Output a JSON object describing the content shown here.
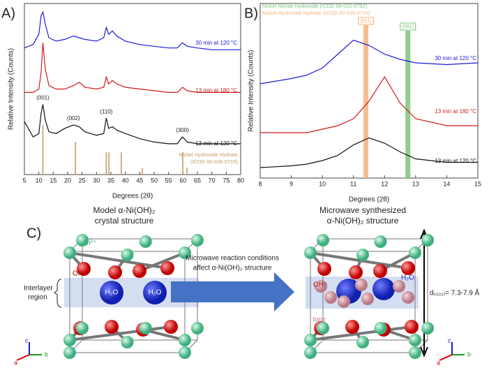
{
  "panel_labels": [
    "A)",
    "B)",
    "C)"
  ],
  "chart_data": [
    {
      "type": "line",
      "ylabel": "Relative Intensity (Counts)",
      "xlabel": "Degrees (2θ)",
      "xlim": [
        5,
        80
      ],
      "xticks": [
        5,
        10,
        15,
        20,
        25,
        30,
        35,
        40,
        45,
        50,
        55,
        60,
        65,
        70,
        75,
        80
      ],
      "ylim": [
        0,
        100
      ],
      "x": [
        5,
        8,
        10,
        10.8,
        11.4,
        12.2,
        13.5,
        16,
        19,
        22,
        24,
        26,
        30,
        32.5,
        33.4,
        34.2,
        35.5,
        37,
        40,
        45,
        50,
        55,
        58,
        59.8,
        61.5,
        65,
        70,
        75,
        80
      ],
      "series": [
        {
          "name": "30 min at 120 °C",
          "color": "#1a1adc",
          "values": [
            74,
            76,
            82,
            93,
            95,
            88,
            80,
            78,
            79,
            81,
            80,
            79,
            78,
            80,
            86,
            82,
            84,
            81,
            78,
            76,
            75,
            74,
            74,
            77,
            75,
            74,
            73,
            73,
            73
          ]
        },
        {
          "name": "13 min at 180 °C",
          "color": "#d01a1a",
          "values": [
            48,
            48,
            50,
            60,
            77,
            62,
            52,
            50,
            50,
            52,
            54,
            51,
            50,
            51,
            57,
            53,
            55,
            53,
            51,
            50,
            49,
            48,
            48,
            51,
            49,
            48,
            48,
            48,
            48
          ]
        },
        {
          "name": "13 min at 120 °C",
          "color": "#111111",
          "values": [
            31,
            22,
            24,
            36,
            41,
            32,
            25,
            24,
            27,
            29,
            28,
            25,
            23,
            24,
            33,
            27,
            28,
            26,
            24,
            21,
            19,
            18,
            18,
            22,
            19,
            18,
            18,
            18,
            18
          ]
        }
      ],
      "annotations": [
        {
          "text": "(001)",
          "x": 11.4
        },
        {
          "text": "(002)",
          "x": 22
        },
        {
          "text": "(110)",
          "x": 33.4
        },
        {
          "text": "(300)",
          "x": 59.8
        }
      ],
      "reference": {
        "name_lines": [
          "Nickel Hydroxide Hydrate",
          "(ICDD 00-038-0715)"
        ],
        "color": "#c59a66",
        "x": [
          11.4,
          22.7,
          33.4,
          34.3,
          38.6,
          45.9,
          59.9,
          61.4
        ],
        "values": [
          29,
          19,
          13,
          13,
          13,
          4,
          13,
          4
        ]
      }
    },
    {
      "type": "line",
      "ylabel": "Relative Intensity (Counts)",
      "xlabel": "Degrees (2θ)",
      "xlim": [
        8,
        15
      ],
      "xticks": [
        8,
        9,
        10,
        11,
        12,
        13,
        14,
        15
      ],
      "ylim": [
        0,
        100
      ],
      "x": [
        8,
        9,
        9.5,
        10,
        10.5,
        11,
        11.5,
        12,
        12.5,
        13,
        14,
        15
      ],
      "series": [
        {
          "name": "30 min at 120 °C",
          "color": "#1a1adc",
          "values": [
            54,
            57,
            59,
            63,
            71,
            79,
            76,
            71,
            68,
            66,
            65,
            66
          ]
        },
        {
          "name": "13 min at 180 °C",
          "color": "#d01a1a",
          "values": [
            26,
            26,
            26,
            28,
            30,
            34,
            44,
            58,
            43,
            34,
            30,
            30
          ]
        },
        {
          "name": "13 min at 120 °C",
          "color": "#111111",
          "values": [
            6,
            7,
            8,
            10,
            13,
            19,
            23,
            20,
            15,
            11,
            9,
            9
          ]
        }
      ],
      "references": [
        {
          "name": "Nickel Nitrate Hydroxide (ICDD 00-022-0752)",
          "color": "#7cc47a",
          "x": 12.75,
          "label": "(001)"
        },
        {
          "name": "Nickel Hydroxide Hydrate (ICDD 00-038-0715)",
          "color": "#f4b27a",
          "x": 11.4,
          "label": "(001)"
        }
      ]
    }
  ],
  "diagram": {
    "left_title": [
      "Model α-Ni(OH)₂",
      "crystal structure"
    ],
    "right_title": [
      "Microwave synthesized",
      "α-Ni(OH)₂ structure"
    ],
    "ni_label": "Ni²⁺",
    "oh_label": "OH⁻",
    "water_label": "H₂O",
    "interlayer_label": [
      "Interlayer",
      "region"
    ],
    "arrow_label": [
      "Microwave reaction conditions",
      "affect α-Ni(OH)₂ structure"
    ],
    "ions_label": "Ions",
    "spacing_label": "d₍₀₀₁₎= 7.3-7.9 Å",
    "axes": [
      "a",
      "b",
      "c"
    ]
  }
}
